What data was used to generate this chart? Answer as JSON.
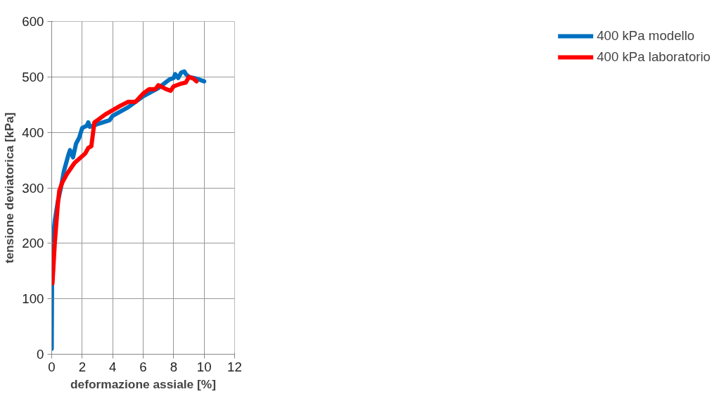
{
  "chart_data": {
    "type": "line",
    "xlabel": "deformazione assiale [%]",
    "ylabel": "tensione deviatorica [kPa]",
    "xlim": [
      0,
      12
    ],
    "xticks": [
      0,
      2,
      4,
      6,
      8,
      10,
      12
    ],
    "ylim": [
      0,
      600
    ],
    "yticks": [
      0,
      100,
      200,
      300,
      400,
      500,
      600
    ],
    "grid": true,
    "legend": "right",
    "marker": "none",
    "line_style": "solid",
    "series": [
      {
        "name": "400 kPa modello",
        "color": "#0070c0",
        "x": [
          0,
          0.02,
          0.05,
          0.2,
          0.4,
          0.6,
          0.8,
          1.0,
          1.1,
          1.2,
          1.4,
          1.6,
          1.8,
          2.0,
          2.3,
          2.4,
          2.5,
          3,
          3.8,
          4,
          5,
          6,
          7,
          7.7,
          8,
          8.1,
          8.3,
          8.5,
          8.7,
          8.8,
          9,
          9.5,
          10
        ],
        "values": [
          10,
          130,
          200,
          240,
          275,
          300,
          330,
          350,
          360,
          368,
          355,
          380,
          390,
          408,
          412,
          418,
          410,
          415,
          422,
          430,
          445,
          465,
          480,
          495,
          498,
          505,
          498,
          508,
          510,
          505,
          500,
          497,
          492
        ]
      },
      {
        "name": "400 kPa laboratorio",
        "color": "#ff0000",
        "x": [
          0.05,
          0.2,
          0.4,
          0.5,
          0.7,
          1,
          1.5,
          2,
          2.2,
          2.4,
          2.6,
          2.8,
          3,
          3.5,
          4,
          4.5,
          5,
          5.5,
          6,
          6.4,
          6.8,
          7,
          7.5,
          7.8,
          8,
          8.5,
          8.8,
          9,
          9.3,
          9.5
        ],
        "values": [
          128,
          200,
          270,
          295,
          310,
          325,
          345,
          357,
          362,
          372,
          375,
          418,
          422,
          432,
          440,
          448,
          455,
          455,
          470,
          478,
          478,
          485,
          478,
          475,
          483,
          488,
          490,
          500,
          497,
          492
        ]
      }
    ]
  }
}
